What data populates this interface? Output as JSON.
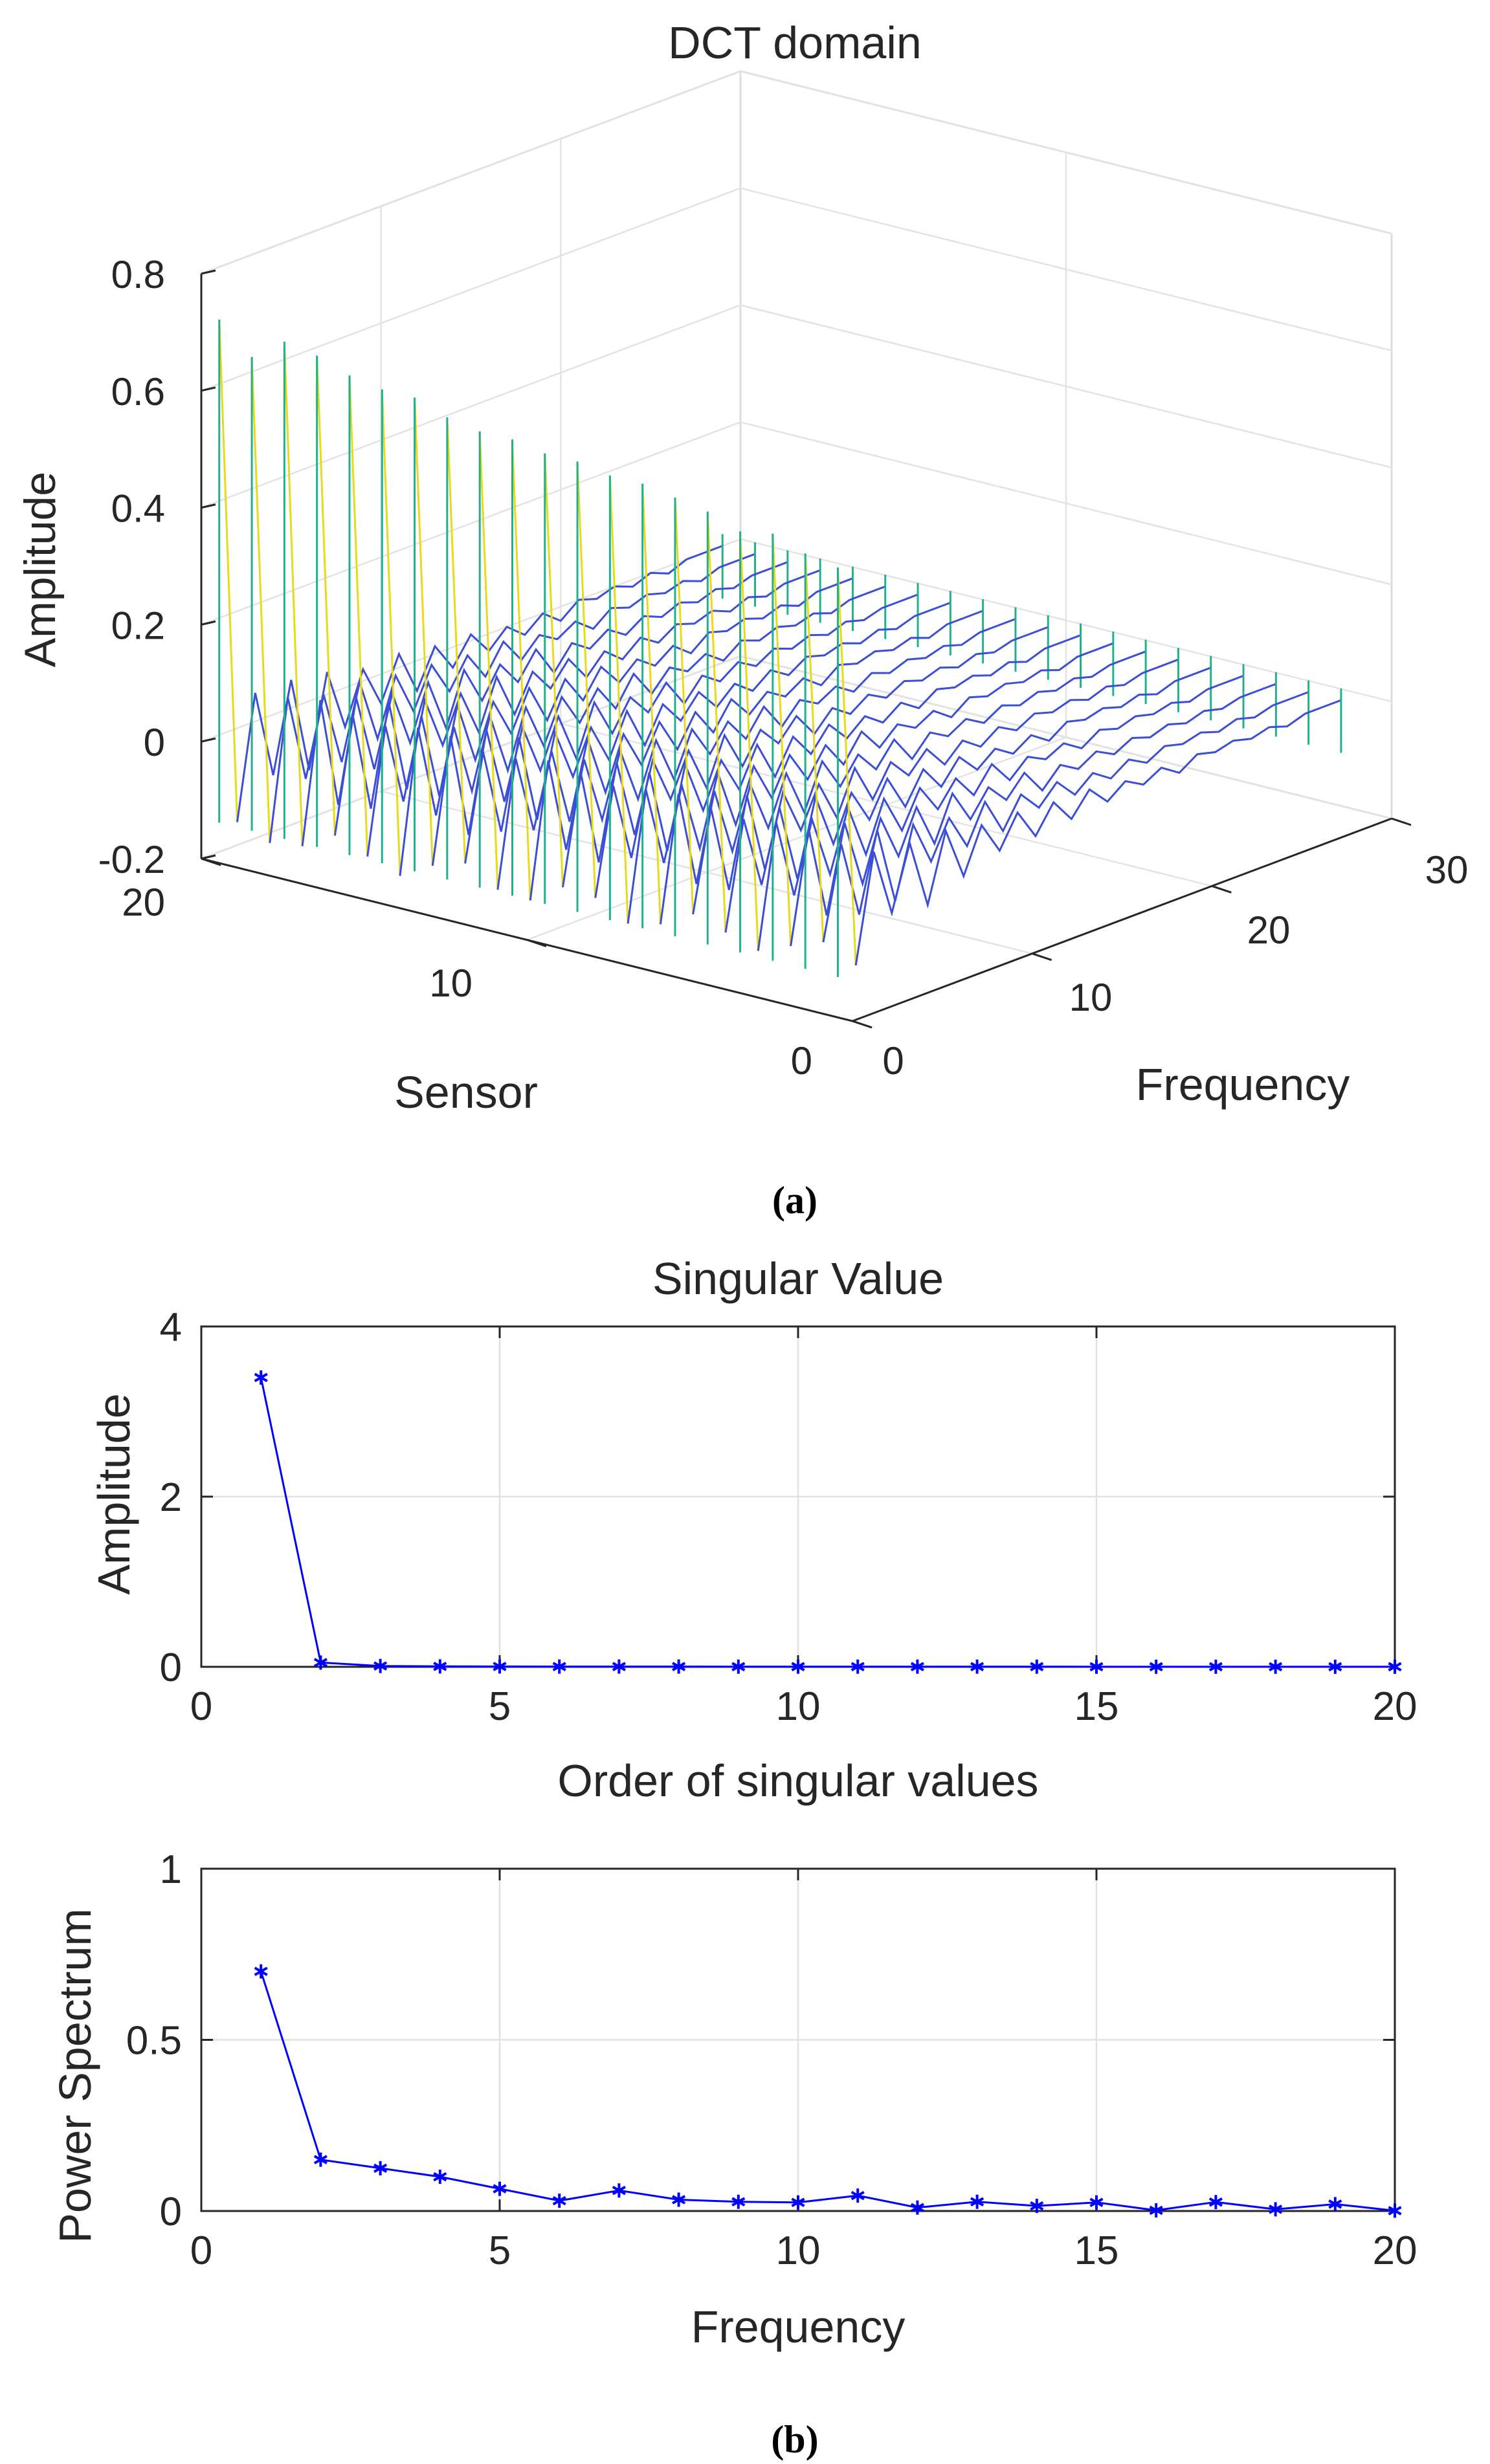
{
  "chart_data": [
    {
      "type": "surface3d",
      "panel": "(a)",
      "title": "DCT domain",
      "xlabel": "Sensor",
      "ylabel": "Frequency",
      "zlabel": "Amplitude",
      "xlim": [
        0,
        20
      ],
      "ylim": [
        0,
        30
      ],
      "zlim": [
        -0.2,
        0.8
      ],
      "xticks": [
        "0",
        "10",
        "20"
      ],
      "yticks": [
        "0",
        "10",
        "20",
        "30"
      ],
      "zticks": [
        "-0.2",
        "0",
        "0.2",
        "0.4",
        "0.6",
        "0.8"
      ],
      "sensors": [
        1,
        2,
        3,
        4,
        5,
        6,
        7,
        8,
        9,
        10,
        11,
        12,
        13,
        14,
        15,
        16,
        17,
        18,
        19,
        20
      ],
      "dc_amplitude": [
        0.55,
        0.56,
        0.58,
        0.57,
        0.59,
        0.6,
        0.61,
        0.61,
        0.62,
        0.62,
        0.63,
        0.63,
        0.64,
        0.66,
        0.66,
        0.67,
        0.69,
        0.7,
        0.66,
        0.71
      ],
      "frequency_profile": [
        0.62,
        -0.15,
        0.05,
        -0.1,
        0.04,
        -0.09,
        0.03,
        -0.06,
        0.02,
        -0.05,
        0.02,
        -0.04,
        0.01,
        -0.03,
        0.01,
        -0.03,
        0.0,
        -0.02,
        0.0,
        -0.02,
        0.0,
        -0.01,
        0.0,
        -0.01,
        0.0,
        -0.01,
        0.0,
        0.0,
        0.0
      ],
      "grid": true
    },
    {
      "type": "line",
      "panel": "(b)",
      "title": "Singular Value",
      "xlabel": "Order of singular values",
      "ylabel": "Amplitude",
      "xlim": [
        0,
        20
      ],
      "ylim": [
        0,
        4
      ],
      "xticks": [
        "0",
        "5",
        "10",
        "15",
        "20"
      ],
      "yticks": [
        "0",
        "2",
        "4"
      ],
      "x": [
        1,
        2,
        3,
        4,
        5,
        6,
        7,
        8,
        9,
        10,
        11,
        12,
        13,
        14,
        15,
        16,
        17,
        18,
        19,
        20
      ],
      "values": [
        3.4,
        0.05,
        0.01,
        0.005,
        0.004,
        0.003,
        0.003,
        0.003,
        0.002,
        0.002,
        0.002,
        0.002,
        0.002,
        0.002,
        0.001,
        0.001,
        0.001,
        0.001,
        0.001,
        0.001
      ],
      "color": "#0000ff",
      "marker": "asterisk",
      "grid": true
    },
    {
      "type": "line",
      "title": "",
      "xlabel": "Frequency",
      "ylabel": "Power Spectrum",
      "xlim": [
        0,
        20
      ],
      "ylim": [
        0,
        1
      ],
      "xticks": [
        "0",
        "5",
        "10",
        "15",
        "20"
      ],
      "yticks": [
        "0",
        "0.5",
        "1"
      ],
      "x": [
        1,
        2,
        3,
        4,
        5,
        6,
        7,
        8,
        9,
        10,
        11,
        12,
        13,
        14,
        15,
        16,
        17,
        18,
        19,
        20
      ],
      "values": [
        0.7,
        0.15,
        0.125,
        0.1,
        0.065,
        0.03,
        0.06,
        0.033,
        0.027,
        0.025,
        0.045,
        0.01,
        0.027,
        0.015,
        0.025,
        0.002,
        0.026,
        0.005,
        0.02,
        0.001
      ],
      "color": "#0000ff",
      "marker": "asterisk",
      "grid": true
    }
  ],
  "captions": {
    "a": "(a)",
    "b": "(b)"
  }
}
